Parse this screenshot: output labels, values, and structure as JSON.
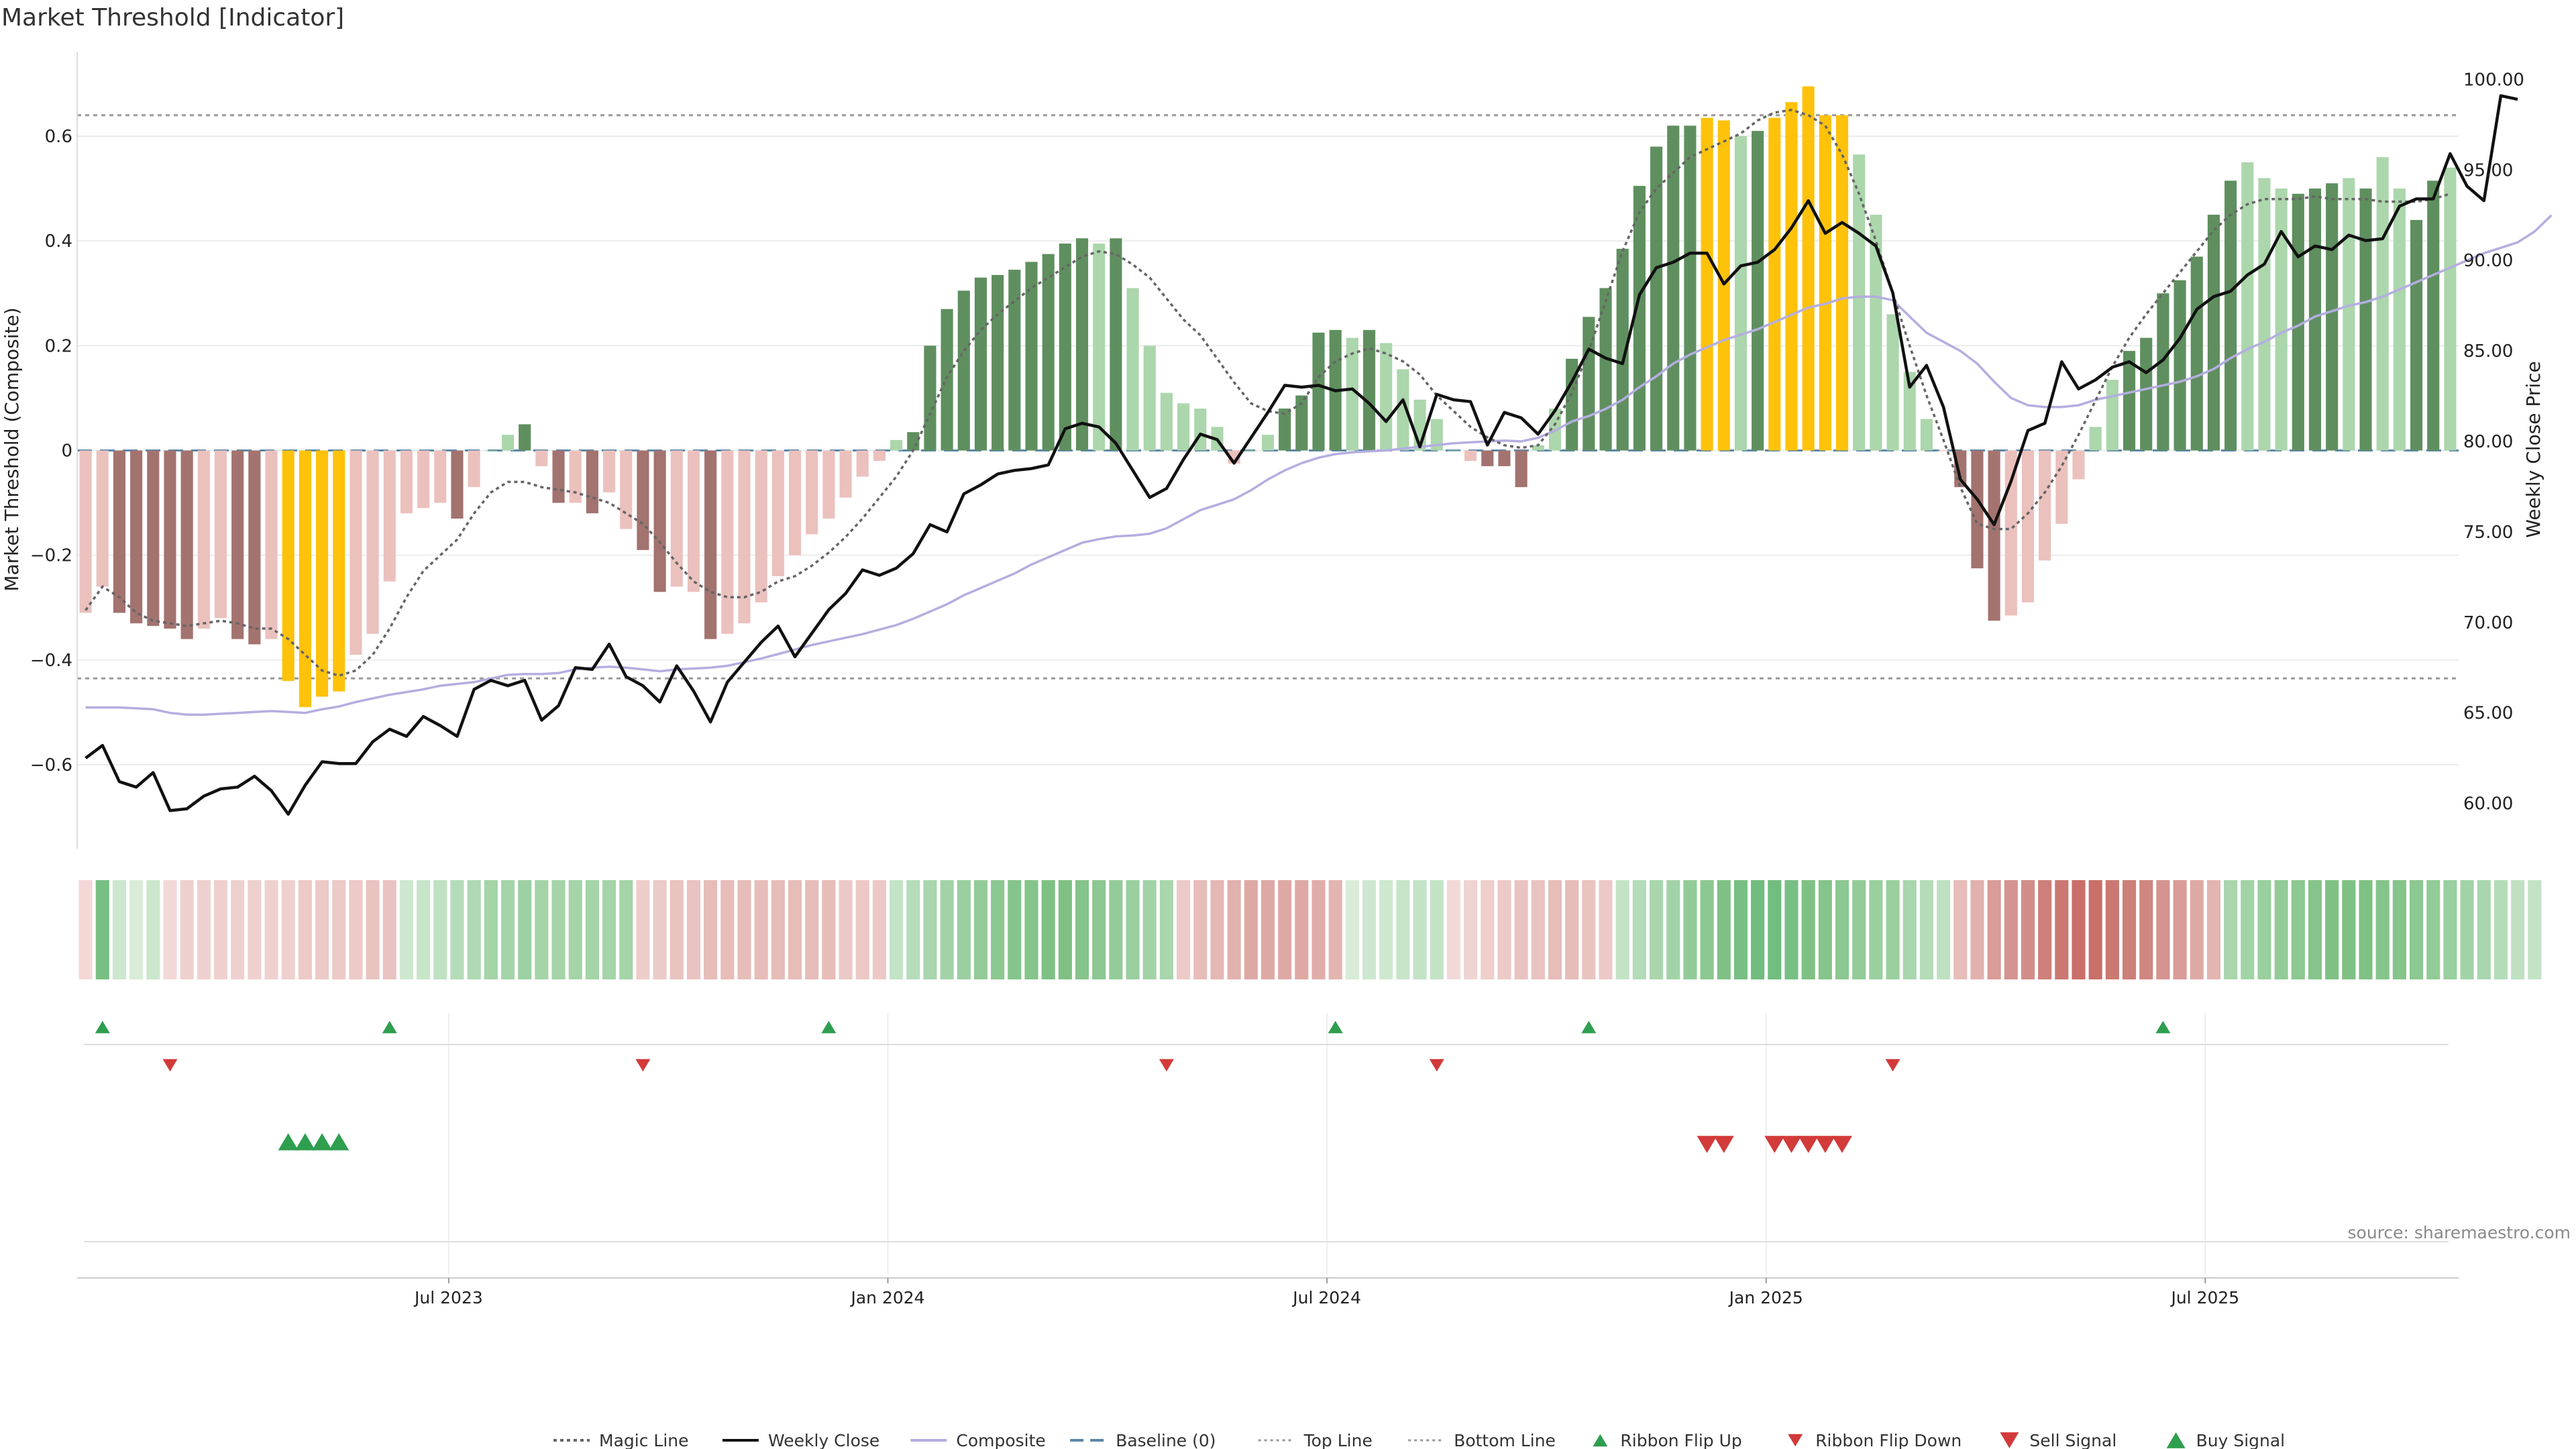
{
  "chart_data": {
    "type": "bar",
    "title": "Market Threshold [Indicator]",
    "ylabel_left": "Market Threshold (Composite)",
    "ylabel_right": "Weekly Close Price",
    "source": "source: sharemaestro.com",
    "ylim_left": [
      -0.76,
      0.76
    ],
    "ylim_right": [
      57.5,
      101.5
    ],
    "yticks_left": [
      -0.6,
      -0.4,
      -0.2,
      0,
      0.2,
      0.4,
      0.6
    ],
    "yticks_left_labels": [
      "−0.6",
      "−0.4",
      "−0.2",
      "0",
      "0.2",
      "0.4",
      "0.6"
    ],
    "yticks_right": [
      60,
      65,
      70,
      75,
      80,
      85,
      90,
      95,
      100
    ],
    "yticks_right_labels": [
      "60.00",
      "65.00",
      "70.00",
      "75.00",
      "80.00",
      "85.00",
      "90.00",
      "95.00",
      "100.00"
    ],
    "xticks": [
      {
        "week": 21.5,
        "label": "Jul 2023"
      },
      {
        "week": 47.5,
        "label": "Jan 2024"
      },
      {
        "week": 73.5,
        "label": "Jul 2024"
      },
      {
        "week": 99.5,
        "label": "Jan 2025"
      },
      {
        "week": 125.5,
        "label": "Jul 2025"
      }
    ],
    "top_line": 0.64,
    "bottom_line": -0.435,
    "colors": {
      "strong_green": "#5f8f5f",
      "light_green": "#acd6ac",
      "strong_red": "#a3736f",
      "light_red": "#ebc1bd",
      "gold": "#ffc20a",
      "magic": "#666666",
      "close": "#111111",
      "composite": "#b4aee0",
      "baseline": "#5b87a8",
      "buy": "#2e9e4f",
      "sell": "#d33a3a"
    },
    "composite_values": [
      -0.31,
      -0.26,
      -0.31,
      -0.33,
      -0.335,
      -0.34,
      -0.36,
      -0.34,
      -0.32,
      -0.36,
      -0.37,
      -0.36,
      -0.44,
      -0.49,
      -0.47,
      -0.46,
      -0.39,
      -0.35,
      -0.25,
      -0.12,
      -0.11,
      -0.1,
      -0.13,
      -0.07,
      0,
      0.03,
      0.05,
      -0.03,
      -0.1,
      -0.1,
      -0.12,
      -0.08,
      -0.15,
      -0.19,
      -0.27,
      -0.26,
      -0.27,
      -0.36,
      -0.35,
      -0.33,
      -0.29,
      -0.24,
      -0.2,
      -0.16,
      -0.13,
      -0.09,
      -0.05,
      -0.02,
      0.02,
      0.035,
      0.2,
      0.27,
      0.305,
      0.33,
      0.335,
      0.345,
      0.36,
      0.375,
      0.395,
      0.405,
      0.395,
      0.405,
      0.31,
      0.2,
      0.11,
      0.09,
      0.08,
      0.045,
      -0.025,
      0,
      0.03,
      0.08,
      0.105,
      0.225,
      0.23,
      0.215,
      0.23,
      0.205,
      0.155,
      0.097,
      0.06,
      0,
      -0.02,
      -0.03,
      -0.03,
      -0.07,
      0.01,
      0.08,
      0.175,
      0.255,
      0.31,
      0.385,
      0.505,
      0.58,
      0.62,
      0.62,
      0.635,
      0.63,
      0.6,
      0.61,
      0.635,
      0.665,
      0.695,
      0.64,
      0.64,
      0.565,
      0.45,
      0.26,
      0.15,
      0.06,
      0,
      -0.07,
      -0.225,
      -0.325,
      -0.315,
      -0.29,
      -0.21,
      -0.14,
      -0.055,
      0.045,
      0.135,
      0.19,
      0.215,
      0.3,
      0.325,
      0.37,
      0.45,
      0.515,
      0.55,
      0.52,
      0.5,
      0.49,
      0.5,
      0.51,
      0.52,
      0.5,
      0.56,
      0.5,
      0.44,
      0.515,
      0.54
    ],
    "bar_styles": [
      "lr",
      "lr",
      "sr",
      "sr",
      "sr",
      "sr",
      "sr",
      "lr",
      "lr",
      "sr",
      "sr",
      "lr",
      "g",
      "g",
      "g",
      "g",
      "lr",
      "lr",
      "lr",
      "lr",
      "lr",
      "lr",
      "sr",
      "lr",
      "lg",
      "lg",
      "sg",
      "lr",
      "sr",
      "lr",
      "sr",
      "lr",
      "lr",
      "sr",
      "sr",
      "lr",
      "lr",
      "sr",
      "lr",
      "lr",
      "lr",
      "lr",
      "lr",
      "lr",
      "lr",
      "lr",
      "lr",
      "lr",
      "lg",
      "sg",
      "sg",
      "sg",
      "sg",
      "sg",
      "sg",
      "sg",
      "sg",
      "sg",
      "sg",
      "sg",
      "lg",
      "sg",
      "lg",
      "lg",
      "lg",
      "lg",
      "lg",
      "lg",
      "lr",
      "lg",
      "lg",
      "sg",
      "sg",
      "sg",
      "sg",
      "lg",
      "sg",
      "lg",
      "lg",
      "lg",
      "lg",
      "lg",
      "lr",
      "sr",
      "sr",
      "sr",
      "lg",
      "lg",
      "sg",
      "sg",
      "sg",
      "sg",
      "sg",
      "sg",
      "sg",
      "sg",
      "g",
      "g",
      "lg",
      "sg",
      "g",
      "g",
      "g",
      "g",
      "g",
      "lg",
      "lg",
      "lg",
      "lg",
      "lg",
      "lr",
      "sr",
      "sr",
      "sr",
      "lr",
      "lr",
      "lr",
      "lr",
      "lr",
      "lg",
      "lg",
      "sg",
      "sg",
      "sg",
      "sg",
      "sg",
      "sg",
      "sg",
      "lg",
      "lg",
      "lg",
      "sg",
      "sg",
      "sg",
      "lg",
      "sg",
      "lg",
      "lg",
      "sg",
      "sg"
    ],
    "weekly_close": [
      62.5,
      63.2,
      61.2,
      60.9,
      61.7,
      59.6,
      59.7,
      60.4,
      60.8,
      60.9,
      61.5,
      60.7,
      59.4,
      61.0,
      62.3,
      62.2,
      62.2,
      63.4,
      64.1,
      63.7,
      64.8,
      64.3,
      63.7,
      66.3,
      66.8,
      66.5,
      66.8,
      64.6,
      65.4,
      67.5,
      67.4,
      68.8,
      67.0,
      66.5,
      65.6,
      67.6,
      66.2,
      64.5,
      66.7,
      67.8,
      68.9,
      69.8,
      68.1,
      69.4,
      70.7,
      71.6,
      72.9,
      72.6,
      73.0,
      73.8,
      75.4,
      75.0,
      77.1,
      77.6,
      78.2,
      78.4,
      78.5,
      78.7,
      80.7,
      81.0,
      80.8,
      79.9,
      78.4,
      76.9,
      77.4,
      79.0,
      80.4,
      80.1,
      78.8,
      80.2,
      81.6,
      83.1,
      83.0,
      83.1,
      82.8,
      82.9,
      82.1,
      81.1,
      82.3,
      79.7,
      82.6,
      82.3,
      82.2,
      79.8,
      81.6,
      81.3,
      80.4,
      81.7,
      83.3,
      85.1,
      84.6,
      84.3,
      88.1,
      89.6,
      89.9,
      90.4,
      90.4,
      88.7,
      89.7,
      89.9,
      90.6,
      91.8,
      93.3,
      91.5,
      92.1,
      91.5,
      90.8,
      88.2,
      83.0,
      84.2,
      81.9,
      77.9,
      76.8,
      75.4,
      77.8,
      80.6,
      81.0,
      84.4,
      82.9,
      83.4,
      84.1,
      84.4,
      83.8,
      84.5,
      85.7,
      87.3,
      88.0,
      88.3,
      89.2,
      89.8,
      91.6,
      90.2,
      90.8,
      90.6,
      91.4,
      91.1,
      91.2,
      93.0,
      93.4,
      93.4,
      95.9,
      94.1,
      93.3,
      99.1,
      98.9
    ],
    "magic_values": [
      -0.305,
      -0.26,
      -0.28,
      -0.31,
      -0.325,
      -0.33,
      -0.335,
      -0.33,
      -0.325,
      -0.33,
      -0.34,
      -0.34,
      -0.36,
      -0.39,
      -0.42,
      -0.43,
      -0.42,
      -0.39,
      -0.34,
      -0.28,
      -0.23,
      -0.2,
      -0.17,
      -0.12,
      -0.08,
      -0.06,
      -0.06,
      -0.07,
      -0.075,
      -0.08,
      -0.09,
      -0.1,
      -0.12,
      -0.14,
      -0.175,
      -0.215,
      -0.25,
      -0.27,
      -0.28,
      -0.28,
      -0.27,
      -0.25,
      -0.24,
      -0.22,
      -0.195,
      -0.165,
      -0.13,
      -0.09,
      -0.05,
      0,
      0.07,
      0.14,
      0.19,
      0.23,
      0.26,
      0.285,
      0.31,
      0.33,
      0.35,
      0.37,
      0.38,
      0.375,
      0.355,
      0.33,
      0.29,
      0.25,
      0.22,
      0.175,
      0.13,
      0.09,
      0.075,
      0.07,
      0.09,
      0.14,
      0.17,
      0.185,
      0.195,
      0.185,
      0.17,
      0.145,
      0.105,
      0.075,
      0.045,
      0.025,
      0.01,
      0.005,
      0.01,
      0.05,
      0.11,
      0.19,
      0.285,
      0.38,
      0.455,
      0.5,
      0.53,
      0.56,
      0.575,
      0.59,
      0.605,
      0.63,
      0.645,
      0.65,
      0.64,
      0.62,
      0.565,
      0.49,
      0.4,
      0.3,
      0.2,
      0.105,
      0.02,
      -0.07,
      -0.14,
      -0.15,
      -0.15,
      -0.12,
      -0.08,
      -0.03,
      0.03,
      0.095,
      0.16,
      0.215,
      0.26,
      0.3,
      0.34,
      0.38,
      0.42,
      0.45,
      0.47,
      0.48,
      0.48,
      0.48,
      0.485,
      0.48,
      0.48,
      0.48,
      0.475,
      0.475,
      0.475,
      0.48,
      0.49
    ],
    "composite_line": [
      65.3,
      65.3,
      65.3,
      65.25,
      65.2,
      65.0,
      64.9,
      64.9,
      64.95,
      65.0,
      65.05,
      65.1,
      65.05,
      65.0,
      65.2,
      65.35,
      65.6,
      65.8,
      66.0,
      66.15,
      66.3,
      66.5,
      66.6,
      66.7,
      66.9,
      67.1,
      67.15,
      67.15,
      67.2,
      67.4,
      67.5,
      67.55,
      67.5,
      67.4,
      67.3,
      67.4,
      67.45,
      67.5,
      67.6,
      67.8,
      68.0,
      68.25,
      68.5,
      68.75,
      68.95,
      69.15,
      69.35,
      69.6,
      69.85,
      70.2,
      70.6,
      71.0,
      71.5,
      71.9,
      72.3,
      72.7,
      73.2,
      73.6,
      74.0,
      74.4,
      74.6,
      74.75,
      74.8,
      74.9,
      75.2,
      75.7,
      76.2,
      76.5,
      76.8,
      77.3,
      77.9,
      78.4,
      78.8,
      79.1,
      79.3,
      79.4,
      79.45,
      79.5,
      79.6,
      79.7,
      79.8,
      79.9,
      79.95,
      80.0,
      80.05,
      80.0,
      80.2,
      80.6,
      81.1,
      81.4,
      81.8,
      82.3,
      83.0,
      83.6,
      84.3,
      84.8,
      85.2,
      85.6,
      85.9,
      86.2,
      86.6,
      87.0,
      87.4,
      87.6,
      87.9,
      88.0,
      88.0,
      87.8,
      86.9,
      86.0,
      85.5,
      85.0,
      84.3,
      83.3,
      82.4,
      82.0,
      81.9,
      81.9,
      82.0,
      82.3,
      82.5,
      82.7,
      82.9,
      83.1,
      83.3,
      83.6,
      84.0,
      84.6,
      85.1,
      85.5,
      86.0,
      86.4,
      86.9,
      87.2,
      87.5,
      87.7,
      88.0,
      88.4,
      88.8,
      89.2,
      89.6,
      90.0,
      90.4,
      90.7,
      91.0,
      91.6,
      92.5
    ],
    "ribbon_colors": [
      "#f2d9d8",
      "#78bf84",
      "#cbe7cd",
      "#d8ecd8",
      "#cbe7cd",
      "#f2d9d8",
      "#eed1ce",
      "#eed1ce",
      "#eed1ce",
      "#eed1ce",
      "#eed1ce",
      "#eed1ce",
      "#eed1ce",
      "#eccac7",
      "#eccac7",
      "#eccac7",
      "#eccac7",
      "#e9c3c0",
      "#e9c3c0",
      "#cde8cf",
      "#c7e5c9",
      "#bfe1c2",
      "#b4dcb8",
      "#aed9b2",
      "#a4d4a8",
      "#a4d4a8",
      "#9dd0a2",
      "#a4d4a8",
      "#a4d4a8",
      "#a4d4a8",
      "#a4d4a8",
      "#a4d4a8",
      "#a4d4a8",
      "#edcdca",
      "#eccac7",
      "#e9c3c0",
      "#e9c3c0",
      "#e6bdb9",
      "#e6bdb9",
      "#e6bdb9",
      "#e6bdb9",
      "#e6bdb9",
      "#e6bdb9",
      "#e6bdb9",
      "#e6bdb9",
      "#ecc9c6",
      "#ecc9c6",
      "#ecc9c6",
      "#c3e3c6",
      "#b6dcba",
      "#a9d6ad",
      "#a2d3a7",
      "#9acf9f",
      "#93cb98",
      "#8cc891",
      "#85c48a",
      "#85c48a",
      "#7fc184",
      "#7fc184",
      "#85c48a",
      "#8cc891",
      "#93cb98",
      "#9acf9f",
      "#a2d3a7",
      "#a9d6ad",
      "#eccac7",
      "#e6bdb9",
      "#e4b8b4",
      "#e1b1ad",
      "#dea9a5",
      "#dea9a5",
      "#dea9a5",
      "#dea9a5",
      "#e0aeaa",
      "#e3b5b1",
      "#d8ecd8",
      "#cde8cf",
      "#cde8cf",
      "#c7e5c9",
      "#c3e3c6",
      "#c3e3c6",
      "#f2d9d8",
      "#f0d4d2",
      "#eecfcc",
      "#eccac7",
      "#e9c3c0",
      "#e9c3c0",
      "#e6bdb9",
      "#e6bdb9",
      "#e9c3c0",
      "#ecc9c6",
      "#c3e3c6",
      "#b4dcb8",
      "#a9d6ad",
      "#a2d3a7",
      "#93cb98",
      "#8cc891",
      "#7fc184",
      "#78bf84",
      "#71bc7f",
      "#71bc7f",
      "#78bf84",
      "#7fc184",
      "#85c48a",
      "#8cc891",
      "#93cb98",
      "#9acf9f",
      "#9acf9f",
      "#a9d6ad",
      "#b4dcb8",
      "#bfe1c2",
      "#e6bdb9",
      "#e1b1ad",
      "#d99c97",
      "#d5948f",
      "#d28d88",
      "#cd7f79",
      "#cb7873",
      "#c96f69",
      "#c96f69",
      "#cb7873",
      "#cd7f79",
      "#d08680",
      "#d5948f",
      "#d99c97",
      "#dea9a5",
      "#e3b5b1",
      "#a9d6ad",
      "#a2d3a7",
      "#9acf9f",
      "#93cb98",
      "#8cc891",
      "#85c48a",
      "#7fc184",
      "#7fc184",
      "#7fc184",
      "#85c48a",
      "#85c48a",
      "#8cc891",
      "#93cb98",
      "#9acf9f",
      "#a2d3a7",
      "#a9d6ad",
      "#b4dcb8",
      "#bfe1c2",
      "#c3e3c6"
    ],
    "ribbon_flip_up_weeks": [
      1,
      18,
      44,
      74,
      89,
      123
    ],
    "ribbon_flip_down_weeks": [
      5,
      33,
      64,
      80,
      107
    ],
    "buy_signal_weeks": [
      12,
      13,
      14,
      15
    ],
    "sell_signal_weeks": [
      96,
      97,
      100,
      101,
      102,
      103,
      104
    ],
    "legend": [
      {
        "label": "Magic Line",
        "kind": "dotted",
        "color": "#666666"
      },
      {
        "label": "Weekly Close",
        "kind": "solid",
        "color": "#111111"
      },
      {
        "label": "Composite",
        "kind": "solid",
        "color": "#b4aee0"
      },
      {
        "label": "Baseline (0)",
        "kind": "dashed",
        "color": "#5b87a8"
      },
      {
        "label": "Top Line",
        "kind": "dotted-light",
        "color": "#999999"
      },
      {
        "label": "Bottom Line",
        "kind": "dotted-light",
        "color": "#999999"
      },
      {
        "label": "Ribbon Flip Up",
        "kind": "tri-up-small",
        "color": "#2e9e4f"
      },
      {
        "label": "Ribbon Flip Down",
        "kind": "tri-down-small",
        "color": "#d33a3a"
      },
      {
        "label": "Sell Signal",
        "kind": "tri-down",
        "color": "#d33a3a"
      },
      {
        "label": "Buy Signal",
        "kind": "tri-up",
        "color": "#2e9e4f"
      }
    ]
  }
}
